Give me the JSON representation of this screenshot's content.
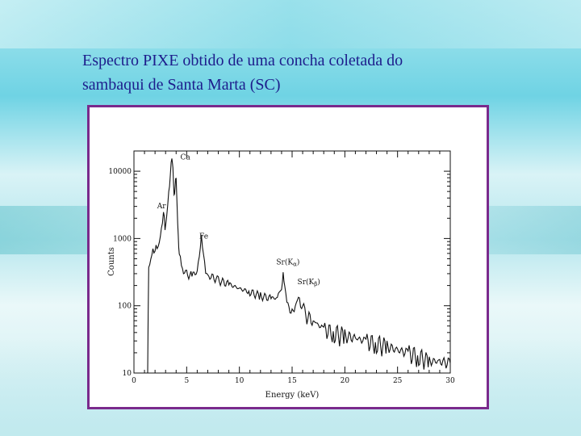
{
  "slide": {
    "title_line1": "Espectro PIXE obtido de uma concha coletada do",
    "title_line2": "sambaqui de Santa Marta (SC)"
  },
  "colors": {
    "title": "#1d1d8c",
    "frame_border": "#7a2a8c",
    "plot_line": "#111111"
  },
  "chart_data": {
    "type": "line",
    "xlabel": "Energy (keV)",
    "ylabel": "Counts",
    "xlim": [
      0,
      30
    ],
    "ylim": [
      10,
      20000
    ],
    "y_scale": "log",
    "x_ticks": [
      0,
      5,
      10,
      15,
      20,
      25,
      30
    ],
    "y_ticks": [
      10,
      100,
      1000,
      10000
    ],
    "y_tick_labels": [
      "10",
      "100",
      "1000",
      "10000"
    ],
    "grid": false,
    "series": [
      {
        "x": [
          1.3,
          1.4,
          1.6,
          1.8,
          2.0,
          2.2,
          2.4,
          2.6,
          2.8,
          2.95,
          3.1,
          3.3,
          3.45,
          3.6,
          3.7,
          3.8,
          3.9,
          4.0,
          4.1,
          4.2,
          4.3,
          4.5,
          4.7,
          5.0,
          5.5,
          6.0,
          6.2,
          6.4,
          6.6,
          6.8,
          7.2,
          8.0,
          9.0,
          10.0,
          11.0,
          12.0,
          13.0,
          13.6,
          14.0,
          14.15,
          14.3,
          14.5,
          14.8,
          15.0,
          15.3,
          15.6,
          15.8,
          16.2,
          17.0,
          18.0,
          19.0,
          20.0,
          21.0,
          22.0,
          23.0,
          24.0,
          25.0,
          26.0,
          27.0,
          28.0,
          29.0,
          30.0
        ],
        "y": [
          10,
          400,
          500,
          650,
          650,
          750,
          900,
          1300,
          2500,
          1400,
          2200,
          4500,
          9000,
          16000,
          12000,
          4000,
          6000,
          8000,
          3000,
          1000,
          600,
          400,
          330,
          300,
          280,
          330,
          600,
          1000,
          600,
          300,
          280,
          240,
          210,
          180,
          160,
          140,
          130,
          130,
          200,
          280,
          200,
          110,
          90,
          80,
          100,
          130,
          110,
          75,
          60,
          45,
          40,
          36,
          33,
          30,
          28,
          25,
          22,
          20,
          18,
          15,
          15,
          14
        ]
      }
    ],
    "annotations": [
      {
        "text": "Ca",
        "x": 4.4,
        "y": 15000
      },
      {
        "text": "Ar",
        "x": 2.2,
        "y": 2800
      },
      {
        "text": "Fe",
        "x": 6.2,
        "y": 1000
      },
      {
        "text": "Sr(K",
        "sub": "α",
        "tail": ")",
        "x": 13.5,
        "y": 410
      },
      {
        "text": "Sr(K",
        "sub": "β",
        "tail": ")",
        "x": 15.5,
        "y": 210
      }
    ]
  }
}
